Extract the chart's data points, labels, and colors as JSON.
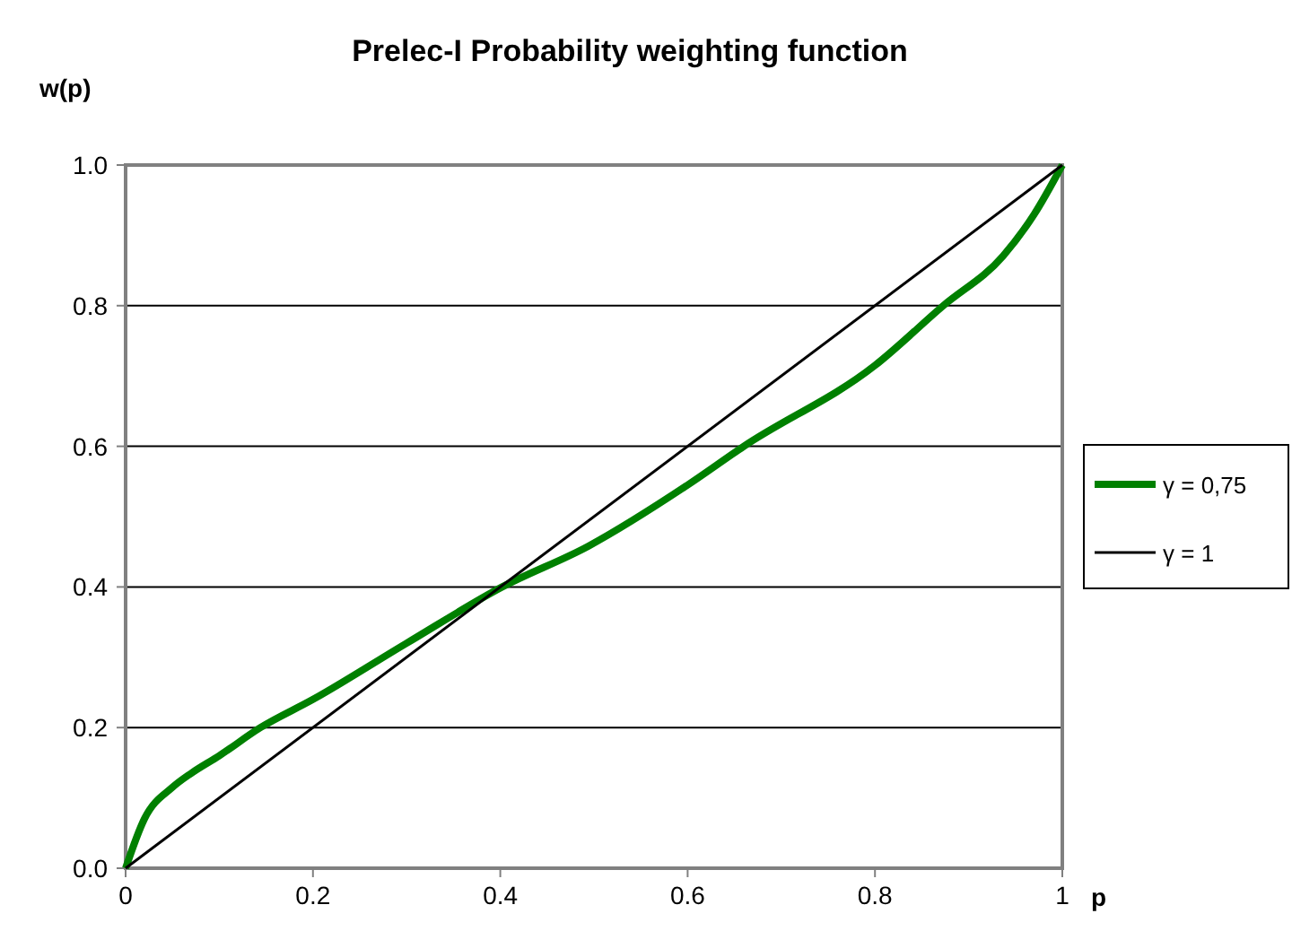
{
  "chart_data": {
    "type": "line",
    "title": "Prelec-I Probability weighting function",
    "xlabel": "p",
    "ylabel": "w(p)",
    "xlim": [
      0,
      1
    ],
    "xticks": [
      0,
      0.2,
      0.4,
      0.6,
      0.8,
      1
    ],
    "ylim": [
      0,
      1
    ],
    "yticks": [
      {
        "value": 0,
        "label": "0.0"
      },
      {
        "value": 0.2,
        "label": "0.2"
      },
      {
        "value": 0.4,
        "label": "0.4"
      },
      {
        "value": 0.6,
        "label": "0.6"
      },
      {
        "value": 0.8,
        "label": "0.8"
      },
      {
        "value": 1,
        "label": "1.0"
      }
    ],
    "grid": "y",
    "legend": "right",
    "marker": "none",
    "series": [
      {
        "name": "γ = 0,75",
        "color": "#008000",
        "x": [
          0,
          0.02,
          0.05,
          0.07,
          0.1,
          0.144,
          0.2,
          0.3,
          0.402,
          0.494,
          0.6,
          0.66,
          0.8,
          0.873,
          0.937,
          0.97,
          1
        ],
        "values": [
          0,
          0.07,
          0.115,
          0.135,
          0.16,
          0.2,
          0.24,
          0.32,
          0.4,
          0.458,
          0.545,
          0.6,
          0.715,
          0.8,
          0.871,
          0.93,
          1
        ]
      },
      {
        "name": "γ = 1",
        "color": "#000000",
        "x": [
          0,
          1
        ],
        "values": [
          0,
          1
        ]
      }
    ]
  }
}
